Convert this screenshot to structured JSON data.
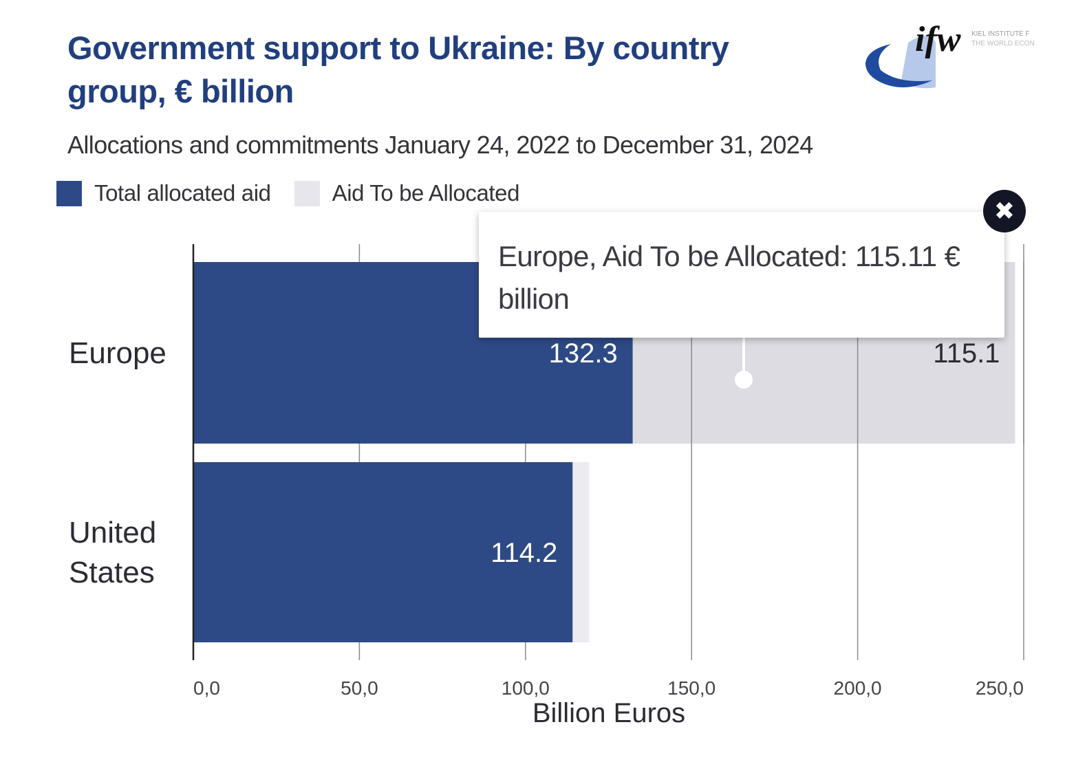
{
  "header": {
    "title": "Government support to Ukraine: By country group, € billion",
    "subtitle": "Allocations and commitments January 24, 2022 to December 31, 2024",
    "logo": {
      "mark": "ifw",
      "line1": "KIEL INSTITUTE F",
      "line2": "THE WORLD ECON"
    }
  },
  "legend": [
    {
      "label": "Total allocated aid",
      "color": "#2e4a86"
    },
    {
      "label": "Aid To be Allocated",
      "color": "#e6e6ec"
    }
  ],
  "tooltip": {
    "text": "Europe, Aid To be Allocated: 115.11 € billion",
    "close_icon": "close-icon"
  },
  "chart_data": {
    "type": "bar",
    "orientation": "horizontal",
    "stacked": true,
    "title": "Government support to Ukraine: By country group, € billion",
    "subtitle": "Allocations and commitments January 24, 2022 to December 31, 2024",
    "categories": [
      "Europe",
      "United States"
    ],
    "category_labels": [
      [
        "Europe"
      ],
      [
        "United",
        "States"
      ]
    ],
    "series": [
      {
        "name": "Total allocated aid",
        "color": "#2e4a86",
        "values": [
          132.3,
          114.2
        ],
        "labels": [
          "132.3",
          "114.2"
        ]
      },
      {
        "name": "Aid To be Allocated",
        "color": "#dcdce2",
        "values": [
          115.1,
          5.0
        ],
        "labels": [
          "115.1",
          ""
        ]
      }
    ],
    "xlabel": "Billion Euros",
    "ylabel": "",
    "xlim": [
      0,
      250
    ],
    "xticks": [
      0,
      50,
      100,
      150,
      200,
      250
    ],
    "xtick_labels": [
      "0,0",
      "50,0",
      "100,0",
      "150,0",
      "200,0",
      "250,0"
    ],
    "grid": true,
    "legend_position": "top-left",
    "highlighted": {
      "category": "Europe",
      "series": "Aid To be Allocated",
      "value": 115.11
    }
  }
}
